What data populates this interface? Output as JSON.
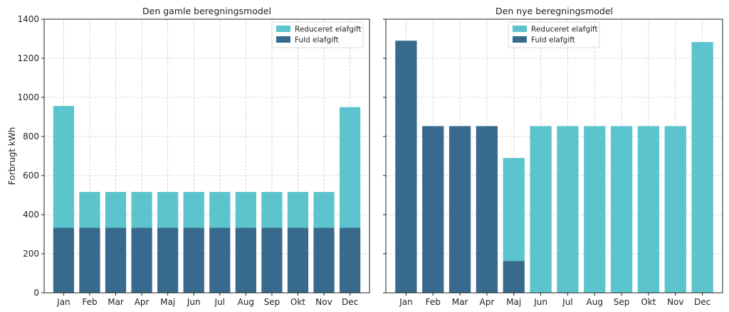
{
  "chart_data": [
    {
      "type": "bar",
      "stacked": true,
      "title": "Den gamle beregningsmodel",
      "ylabel": "Forbrugt kWh",
      "xlabel": "",
      "ylim": [
        0,
        1400
      ],
      "yticks": [
        0,
        200,
        400,
        600,
        800,
        1000,
        1200,
        1400
      ],
      "grid": true,
      "legend_position": "top-right",
      "categories": [
        "Jan",
        "Feb",
        "Mar",
        "Apr",
        "Maj",
        "Jun",
        "Jul",
        "Aug",
        "Sep",
        "Okt",
        "Nov",
        "Dec"
      ],
      "series": [
        {
          "name": "Fuld elafgift",
          "color": "#376a8c",
          "values": [
            333,
            333,
            333,
            333,
            333,
            333,
            333,
            333,
            333,
            333,
            333,
            333
          ]
        },
        {
          "name": "Reduceret elafgift",
          "color": "#5bc4cc",
          "values": [
            623,
            183,
            183,
            183,
            183,
            183,
            183,
            183,
            183,
            183,
            183,
            617
          ]
        }
      ],
      "legend_order": [
        "Reduceret elafgift",
        "Fuld elafgift"
      ]
    },
    {
      "type": "bar",
      "stacked": true,
      "title": "Den nye beregningsmodel",
      "ylabel": "",
      "xlabel": "",
      "ylim": [
        0,
        1400
      ],
      "yticks": [
        0,
        200,
        400,
        600,
        800,
        1000,
        1200,
        1400
      ],
      "grid": true,
      "legend_position": "top-center",
      "categories": [
        "Jan",
        "Feb",
        "Mar",
        "Apr",
        "Maj",
        "Jun",
        "Jul",
        "Aug",
        "Sep",
        "Okt",
        "Nov",
        "Dec"
      ],
      "series": [
        {
          "name": "Fuld elafgift",
          "color": "#376a8c",
          "values": [
            1290,
            853,
            853,
            853,
            163,
            0,
            0,
            0,
            0,
            0,
            0,
            0
          ]
        },
        {
          "name": "Reduceret elafgift",
          "color": "#5bc4cc",
          "values": [
            0,
            0,
            0,
            0,
            527,
            853,
            853,
            853,
            853,
            853,
            853,
            1283
          ]
        }
      ],
      "legend_order": [
        "Reduceret elafgift",
        "Fuld elafgift"
      ]
    }
  ]
}
